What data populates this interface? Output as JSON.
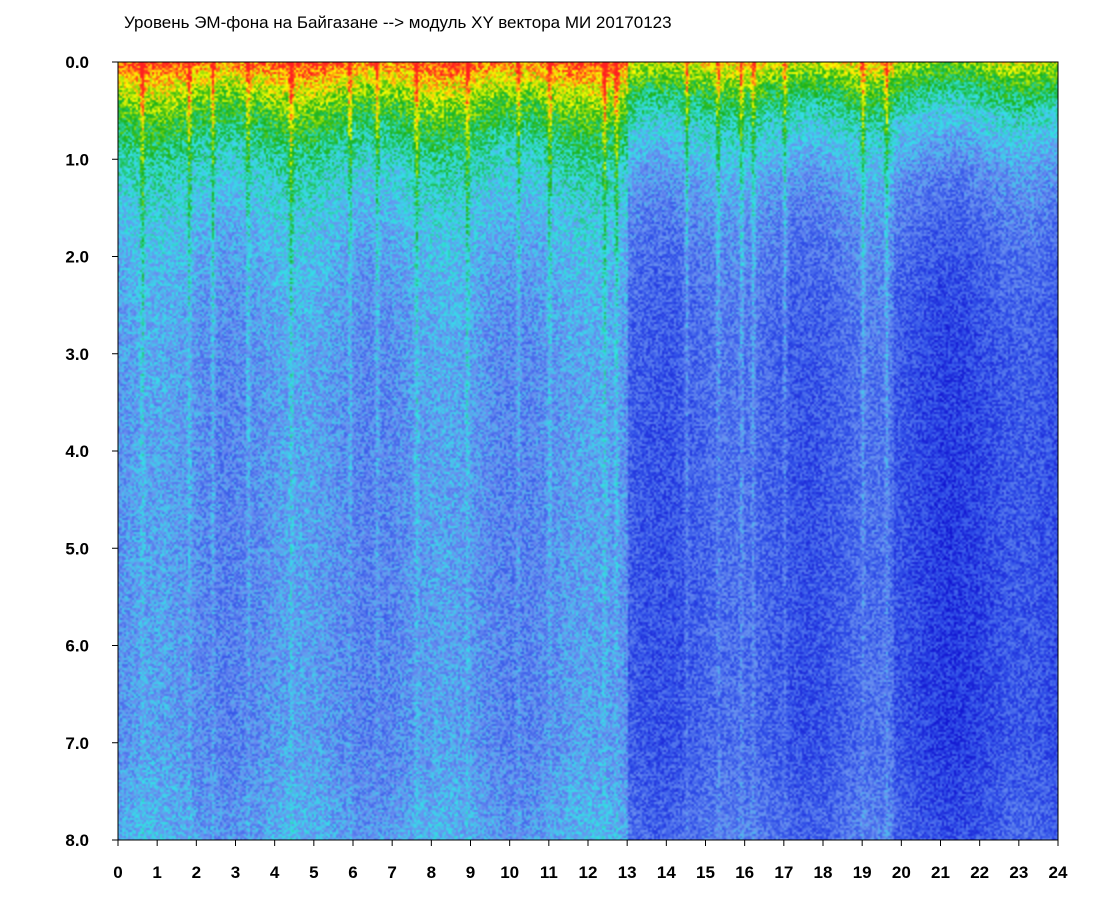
{
  "chart_data": {
    "type": "heatmap",
    "title": "Уровень ЭМ-фона на Байгазане   -->  модуль XY вектора МИ  20170123",
    "xlabel": "",
    "ylabel": "",
    "x_ticks": [
      "0",
      "1",
      "2",
      "3",
      "4",
      "5",
      "6",
      "7",
      "8",
      "9",
      "10",
      "11",
      "12",
      "13",
      "14",
      "15",
      "16",
      "17",
      "18",
      "19",
      "20",
      "21",
      "22",
      "23",
      "24"
    ],
    "y_ticks": [
      "0.0",
      "1.0",
      "2.0",
      "3.0",
      "4.0",
      "5.0",
      "6.0",
      "7.0",
      "8.0"
    ],
    "xlim": [
      0,
      24
    ],
    "ylim": [
      0,
      8
    ],
    "y_inverted": true,
    "grid": false,
    "colormap": [
      "#1010d0",
      "#3050e8",
      "#6a90f0",
      "#33e0e8",
      "#19b219",
      "#ffff00",
      "#ff2020"
    ],
    "colors": {
      "axis": "#000000",
      "background": "#ffffff"
    }
  }
}
